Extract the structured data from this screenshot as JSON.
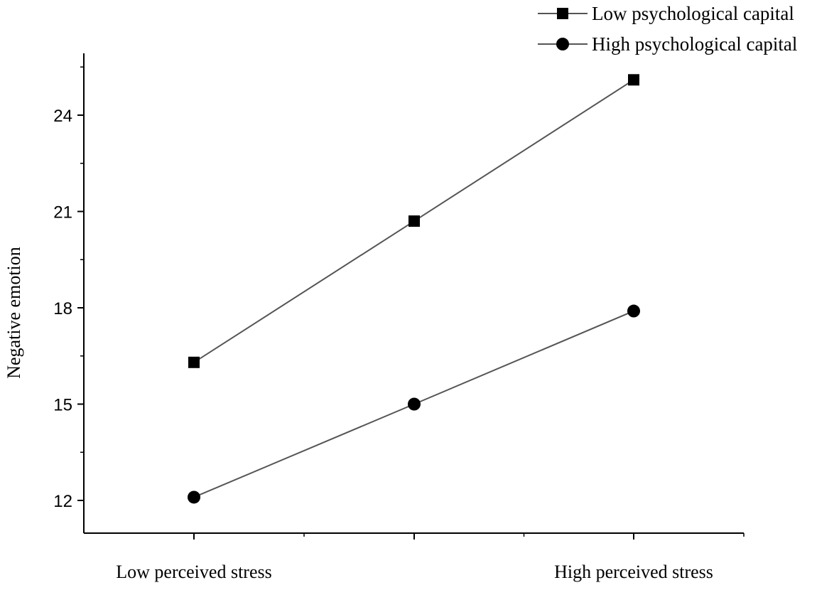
{
  "chart_data": {
    "type": "line",
    "ylabel": "Negative emotion",
    "xlabel": "",
    "x": [
      0,
      1,
      2
    ],
    "x_tick_labels": [
      {
        "x": 0,
        "label": "Low perceived stress"
      },
      {
        "x": 2,
        "label": "High perceived stress"
      }
    ],
    "ylim": [
      11,
      26
    ],
    "yticks": [
      12,
      15,
      18,
      21,
      24
    ],
    "y_minor_ticks": [
      13.5,
      16.5,
      19.5,
      22.5,
      25.5
    ],
    "legend_position": "top-right",
    "series": [
      {
        "name": "Low psychological capital",
        "marker": "square",
        "color": "#000000",
        "values": [
          16.3,
          20.7,
          25.1
        ]
      },
      {
        "name": "High psychological capital",
        "marker": "circle",
        "color": "#000000",
        "values": [
          12.1,
          15.0,
          17.9
        ]
      }
    ],
    "line_color": "#555555",
    "grid": false
  }
}
